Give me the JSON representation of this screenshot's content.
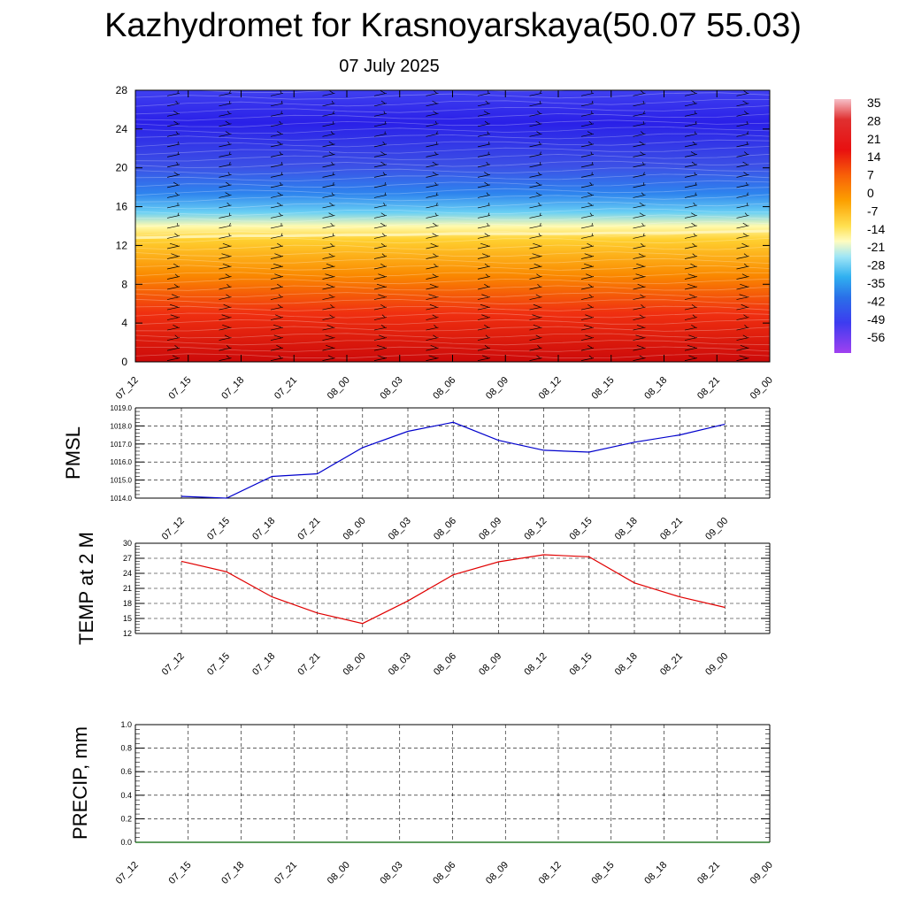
{
  "header": {
    "title": "Kazhydromet for Krasnoyarskaya(50.07 55.03)",
    "date": "07 July 2025"
  },
  "time_labels": [
    "07_12",
    "07_15",
    "07_18",
    "07_21",
    "08_00",
    "08_03",
    "08_06",
    "08_09",
    "08_12",
    "08_15",
    "08_18",
    "08_21",
    "09_00"
  ],
  "colorbar": {
    "labels": [
      "35",
      "28",
      "21",
      "14",
      "7",
      "0",
      "-7",
      "-14",
      "-21",
      "-28",
      "-35",
      "-42",
      "-49",
      "-56"
    ],
    "colors": [
      "#f2b8c0",
      "#d81c1c",
      "#f0430a",
      "#fa8c00",
      "#ffc820",
      "#fff8a0",
      "#a8e8f8",
      "#50c8f0",
      "#2890f0",
      "#3060e0",
      "#3838f0",
      "#7030f0",
      "#a040f0"
    ]
  },
  "chart_data": [
    {
      "type": "heatmap",
      "name": "temperature-wind-cross-section",
      "ylim": [
        0,
        28
      ],
      "yticks": [
        "0",
        "4",
        "8",
        "12",
        "16",
        "20",
        "24",
        "28"
      ],
      "categories": [
        "07_12",
        "07_15",
        "07_18",
        "07_21",
        "08_00",
        "08_03",
        "08_06",
        "08_09",
        "08_12",
        "08_15",
        "08_18",
        "08_21",
        "09_00"
      ],
      "zero_isotherm_level": [
        12.8,
        12.9,
        13.0,
        13.0,
        13.1,
        13.1,
        13.2,
        13.2,
        13.2,
        13.3,
        13.3,
        13.4,
        13.5
      ],
      "color_range": [
        -60,
        35
      ]
    },
    {
      "type": "line",
      "ylabel": "PMSL",
      "ylim": [
        1014.0,
        1019.0
      ],
      "yticks": [
        "1014.0",
        "1015.0",
        "1016.0",
        "1017.0",
        "1018.0",
        "1019.0"
      ],
      "categories": [
        "07_12",
        "07_15",
        "07_18",
        "07_21",
        "08_00",
        "08_03",
        "08_06",
        "08_09",
        "08_12",
        "08_15",
        "08_18",
        "08_21",
        "09_00"
      ],
      "values": [
        1014.1,
        1014.0,
        1015.2,
        1015.35,
        1016.8,
        1017.7,
        1018.2,
        1017.2,
        1016.65,
        1016.55,
        1017.1,
        1017.5,
        1018.1
      ],
      "color": "#0000cc",
      "grid": true
    },
    {
      "type": "line",
      "ylabel": "TEMP at 2 M",
      "ylim": [
        12,
        30
      ],
      "yticks": [
        "12",
        "15",
        "18",
        "21",
        "24",
        "27",
        "30"
      ],
      "categories": [
        "07_12",
        "07_15",
        "07_18",
        "07_21",
        "08_00",
        "08_03",
        "08_06",
        "08_09",
        "08_12",
        "08_15",
        "08_18",
        "08_21",
        "09_00"
      ],
      "values": [
        26.4,
        24.3,
        19.3,
        16.1,
        14.0,
        18.5,
        23.7,
        26.3,
        27.7,
        27.3,
        22.1,
        19.3,
        17.2
      ],
      "color": "#e00000",
      "grid": true
    },
    {
      "type": "line",
      "ylabel": "PRECIP, mm",
      "ylim": [
        0.0,
        1.0
      ],
      "yticks": [
        "0.0",
        "0.2",
        "0.4",
        "0.6",
        "0.8",
        "1.0"
      ],
      "categories": [
        "07_12",
        "07_15",
        "07_18",
        "07_21",
        "08_00",
        "08_03",
        "08_06",
        "08_09",
        "08_12",
        "08_15",
        "08_18",
        "08_21",
        "09_00"
      ],
      "values": [
        0,
        0,
        0,
        0,
        0,
        0,
        0,
        0,
        0,
        0,
        0,
        0,
        0
      ],
      "color": "#006400",
      "grid": true
    }
  ]
}
